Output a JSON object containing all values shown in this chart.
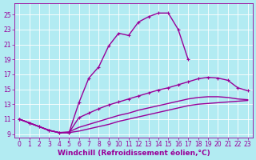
{
  "xlabel": "Windchill (Refroidissement éolien,°C)",
  "bg_color": "#b2ebf2",
  "line_color": "#990099",
  "grid_color": "#ffffff",
  "xlim": [
    -0.5,
    23.5
  ],
  "ylim": [
    8.5,
    26.5
  ],
  "yticks": [
    9,
    11,
    13,
    15,
    17,
    19,
    21,
    23,
    25
  ],
  "xticks": [
    0,
    1,
    2,
    3,
    4,
    5,
    6,
    7,
    8,
    9,
    10,
    11,
    12,
    13,
    14,
    15,
    16,
    17,
    18,
    19,
    20,
    21,
    22,
    23
  ],
  "line1_x": [
    0,
    1,
    2,
    3,
    4,
    5,
    6,
    7,
    8,
    9,
    10,
    11,
    12,
    13,
    14,
    15,
    16,
    17
  ],
  "line1_y": [
    11.0,
    10.5,
    10.0,
    9.5,
    9.2,
    9.2,
    13.2,
    16.5,
    18.0,
    20.8,
    22.5,
    22.2,
    24.0,
    24.7,
    25.2,
    25.2,
    23.0,
    19.0
  ],
  "line2_x": [
    0,
    1,
    2,
    3,
    4,
    5,
    6,
    7,
    8,
    9,
    10,
    11,
    12,
    13,
    14,
    15,
    16,
    17,
    18,
    19,
    20,
    21,
    22,
    23
  ],
  "line2_y": [
    11.0,
    10.5,
    10.0,
    9.5,
    9.2,
    9.2,
    11.2,
    11.8,
    12.4,
    12.9,
    13.3,
    13.7,
    14.1,
    14.5,
    14.9,
    15.2,
    15.6,
    16.0,
    16.4,
    16.6,
    16.5,
    16.2,
    15.2,
    14.8
  ],
  "line3_x": [
    0,
    1,
    2,
    3,
    4,
    5,
    6,
    7,
    8,
    9,
    10,
    11,
    12,
    13,
    14,
    15,
    16,
    17,
    18,
    19,
    20,
    21,
    22,
    23
  ],
  "line3_y": [
    11.0,
    10.5,
    10.0,
    9.5,
    9.2,
    9.2,
    9.4,
    9.7,
    10.0,
    10.3,
    10.7,
    11.0,
    11.3,
    11.6,
    11.9,
    12.2,
    12.5,
    12.8,
    13.0,
    13.1,
    13.2,
    13.3,
    13.4,
    13.5
  ],
  "line4_x": [
    0,
    1,
    2,
    3,
    4,
    5,
    6,
    7,
    8,
    9,
    10,
    11,
    12,
    13,
    14,
    15,
    16,
    17,
    18,
    19,
    20,
    21,
    22,
    23
  ],
  "line4_y": [
    11.0,
    10.5,
    10.0,
    9.5,
    9.2,
    9.3,
    9.9,
    10.3,
    10.7,
    11.1,
    11.5,
    11.8,
    12.2,
    12.5,
    12.8,
    13.1,
    13.4,
    13.7,
    13.9,
    14.0,
    14.0,
    13.9,
    13.7,
    13.6
  ],
  "linewidth": 1.0,
  "markersize": 3.5,
  "tick_fontsize": 5.5,
  "xlabel_fontsize": 6.5
}
